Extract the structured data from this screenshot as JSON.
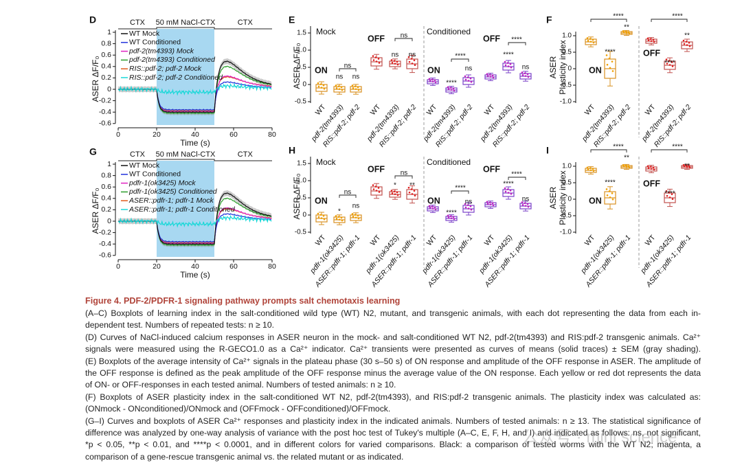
{
  "figure": {
    "panels": [
      {
        "letter": "D",
        "stimulus": [
          "CTX",
          "50 mM NaCl-CTX",
          "CTX"
        ],
        "legend": [
          "WT Mock",
          "WT Conditioned",
          "pdf-2(tm4393) Mock",
          "pdf-2(tm4393) Conditioned",
          "RIS::pdf-2; pdf-2 Mock",
          "RIS::pdf-2; pdf-2 Conditioned"
        ],
        "y_label": "ASER ΔF/F₀",
        "y_ticks": [
          "1",
          "0.8",
          "0.6",
          "0.4",
          "0.2",
          "0",
          "-0.2",
          "-0.4",
          "-0.6"
        ],
        "x_ticks": [
          "0",
          "20",
          "40",
          "60",
          "80"
        ],
        "x_label": "Time (s)"
      },
      {
        "letter": "E",
        "groups": [
          "Mock",
          "Conditioned"
        ],
        "states": [
          "ON",
          "OFF",
          "ON",
          "OFF"
        ],
        "y_label": "ASER ΔF/F₀",
        "y_ticks": [
          "1.5",
          "1.0",
          "0.5",
          "0",
          "-0.5"
        ],
        "categories": [
          "WT",
          "pdf-2(tm4393)",
          "RIS::pdf-2; pdf-2",
          "WT",
          "pdf-2(tm4393)",
          "RIS::pdf-2; pdf-2",
          "WT",
          "pdf-2(tm4393)",
          "RIS::pdf-2; pdf-2",
          "WT",
          "pdf-2(tm4393)",
          "RIS::pdf-2; pdf-2"
        ],
        "significance": [
          "ns",
          "ns",
          "ns",
          "ns",
          "ns",
          "ns",
          "****",
          "****",
          "ns",
          "****",
          "****",
          "ns"
        ]
      },
      {
        "letter": "F",
        "states": [
          "ON",
          "OFF"
        ],
        "y_label": [
          "ASER",
          "Plasticity index"
        ],
        "y_ticks": [
          "1.0",
          "0.5",
          "0",
          "-0.5",
          "-1.0"
        ],
        "categories": [
          "WT",
          "pdf-2(tm4393)",
          "RIS::pdf-2; pdf-2",
          "WT",
          "pdf-2(tm4393)",
          "RIS::pdf-2; pdf-2"
        ],
        "significance": [
          "****",
          "**",
          "****",
          "****",
          "**",
          "****"
        ]
      },
      {
        "letter": "G",
        "stimulus": [
          "CTX",
          "50 mM NaCl-CTX",
          "CTX"
        ],
        "legend": [
          "WT Mock",
          "WT Conditioned",
          "pdfr-1(ok3425) Mock",
          "pdfr-1(ok3425) Conditioned",
          "ASER::pdfr-1; pdfr-1 Mock",
          "ASER::pdfr-1; pdfr-1 Conditioned"
        ],
        "y_label": "ASER ΔF/F₀",
        "y_ticks": [
          "1",
          "0.8",
          "0.6",
          "0.4",
          "0.2",
          "0",
          "-0.2",
          "-0.4",
          "-0.6"
        ],
        "x_ticks": [
          "0",
          "20",
          "40",
          "60",
          "80"
        ],
        "x_label": "Time (s)"
      },
      {
        "letter": "H",
        "groups": [
          "Mock",
          "Conditioned"
        ],
        "states": [
          "ON",
          "OFF",
          "ON",
          "OFF"
        ],
        "y_label": "ASER ΔF/F₀",
        "y_ticks": [
          "1.5",
          "1.0",
          "0.5",
          "0",
          "-0.5"
        ],
        "categories": [
          "WT",
          "pdfr-1(ok3425)",
          "ASER::pdfr-1; pdfr-1",
          "WT",
          "pdfr-1(ok3425)",
          "ASER::pdfr-1; pdfr-1",
          "WT",
          "pdfr-1(ok3425)",
          "ASER::pdfr-1; pdfr-1",
          "WT",
          "pdfr-1(ok3425)",
          "ASER::pdfr-1; pdfr-1"
        ],
        "significance": [
          "*",
          "ns",
          "ns",
          "*",
          "ns",
          "**",
          "****",
          "****",
          "ns",
          "****",
          "****",
          "ns"
        ]
      },
      {
        "letter": "I",
        "states": [
          "ON",
          "OFF"
        ],
        "y_label": [
          "ASER",
          "Plasticity index"
        ],
        "y_ticks": [
          "1.0",
          "0.5",
          "0",
          "-0.5",
          "-1.0"
        ],
        "categories": [
          "WT",
          "pdfr-1(ok3425)",
          "ASER::pdfr-1; pdfr-1",
          "WT",
          "pdfr-1(ok3425)",
          "ASER::pdfr-1; pdfr-1"
        ],
        "significance": [
          "****",
          "**",
          "****",
          "****",
          "**",
          "****"
        ]
      }
    ]
  },
  "caption": {
    "title": "Figure 4. PDF-2/PDFR-1 signaling pathway prompts salt chemotaxis learning",
    "lines": [
      "(A–C) Boxplots of learning index in the salt-conditioned wild type (WT) N2, mutant, and transgenic animals, with each dot representing the data from each in-",
      "dependent test. Numbers of repeated tests: n ≥ 10.",
      "(D) Curves of NaCl-induced calcium responses in ASER neuron in the mock- and salt-conditioned WT N2, pdf-2(tm4393) and RIS:pdf-2 transgenic animals. Ca²⁺",
      "signals were measured using the R-GECO1.0 as a Ca²⁺ indicator. Ca²⁺ transients were presented as curves of means (solid traces) ± SEM (gray shading).",
      "(E) Boxplots of the average intensity of Ca²⁺ signals in the plateau phase (30 s–50 s) of ON response and amplitude of the OFF response in ASER. The amplitude of",
      "the OFF response is defined as the peak amplitude of the OFF response minus the average value of the ON response. Each yellow or red dot represents the data",
      "of ON- or OFF-responses in each tested animal. Numbers of tested animals: n ≥ 10.",
      "(F) Boxplots of ASER plasticity index in the salt-conditioned WT N2, pdf-2(tm4393), and RIS:pdf-2 transgenic animals. The plasticity index was calculated as:",
      "(ONmock - ONconditioned)/ONmock and (OFFmock - OFFconditioned)/OFFmock.",
      "(G–I) Curves and boxplots of ASER Ca²⁺ responses and plasticity index in the indicated animals. Numbers of tested animals: n ≥ 13. The statistical significance of",
      "difference was analyzed by one-way analysis of variance with the post hoc test of Tukey's multiple (A–C, E, F, H, and I) and indicated as follows: ns, not significant,",
      "*p < 0.05, **p < 0.01, and ****p < 0.0001, and in different colors for varied comparisons. Black: a comparison of tested worms with the WT N2; magenta, a",
      "comparison of a gene-rescue transgenic animal vs. the related mutant or as indicated."
    ]
  },
  "watermark": "公众号 · mini science"
}
